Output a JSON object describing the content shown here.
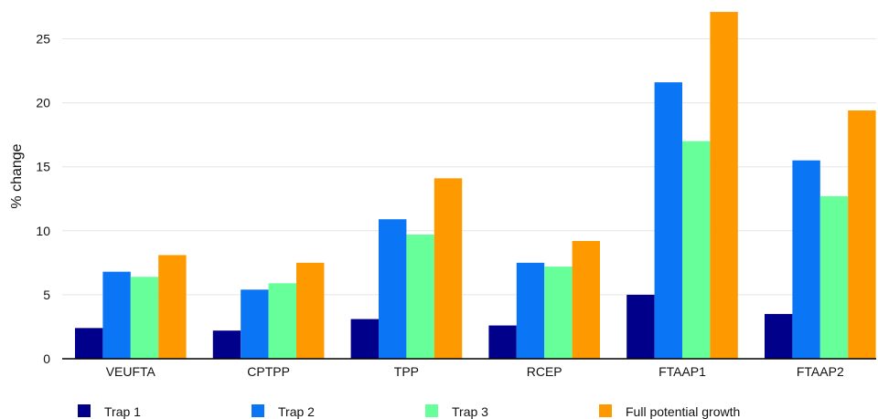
{
  "chart_data": {
    "type": "bar",
    "title": "",
    "xlabel": "",
    "ylabel": "% change",
    "ylim": [
      0,
      27
    ],
    "yticks": [
      0,
      5,
      10,
      15,
      20,
      25
    ],
    "grid": true,
    "legend_position": "bottom",
    "categories": [
      "VEUFTA",
      "CPTPP",
      "TPP",
      "RCEP",
      "FTAAP1",
      "FTAAP2"
    ],
    "series": [
      {
        "name": "Trap 1",
        "color": "#00008b",
        "values": [
          2.4,
          2.2,
          3.1,
          2.6,
          5.0,
          3.5
        ]
      },
      {
        "name": "Trap 2",
        "color": "#0a75f5",
        "values": [
          6.8,
          5.4,
          10.9,
          7.5,
          21.6,
          15.5
        ]
      },
      {
        "name": "Trap 3",
        "color": "#66ff99",
        "values": [
          6.4,
          5.9,
          9.7,
          7.2,
          17.0,
          12.7
        ]
      },
      {
        "name": "Full potential growth",
        "color": "#ff9900",
        "values": [
          8.1,
          7.5,
          14.1,
          9.2,
          27.1,
          19.4
        ]
      }
    ]
  }
}
